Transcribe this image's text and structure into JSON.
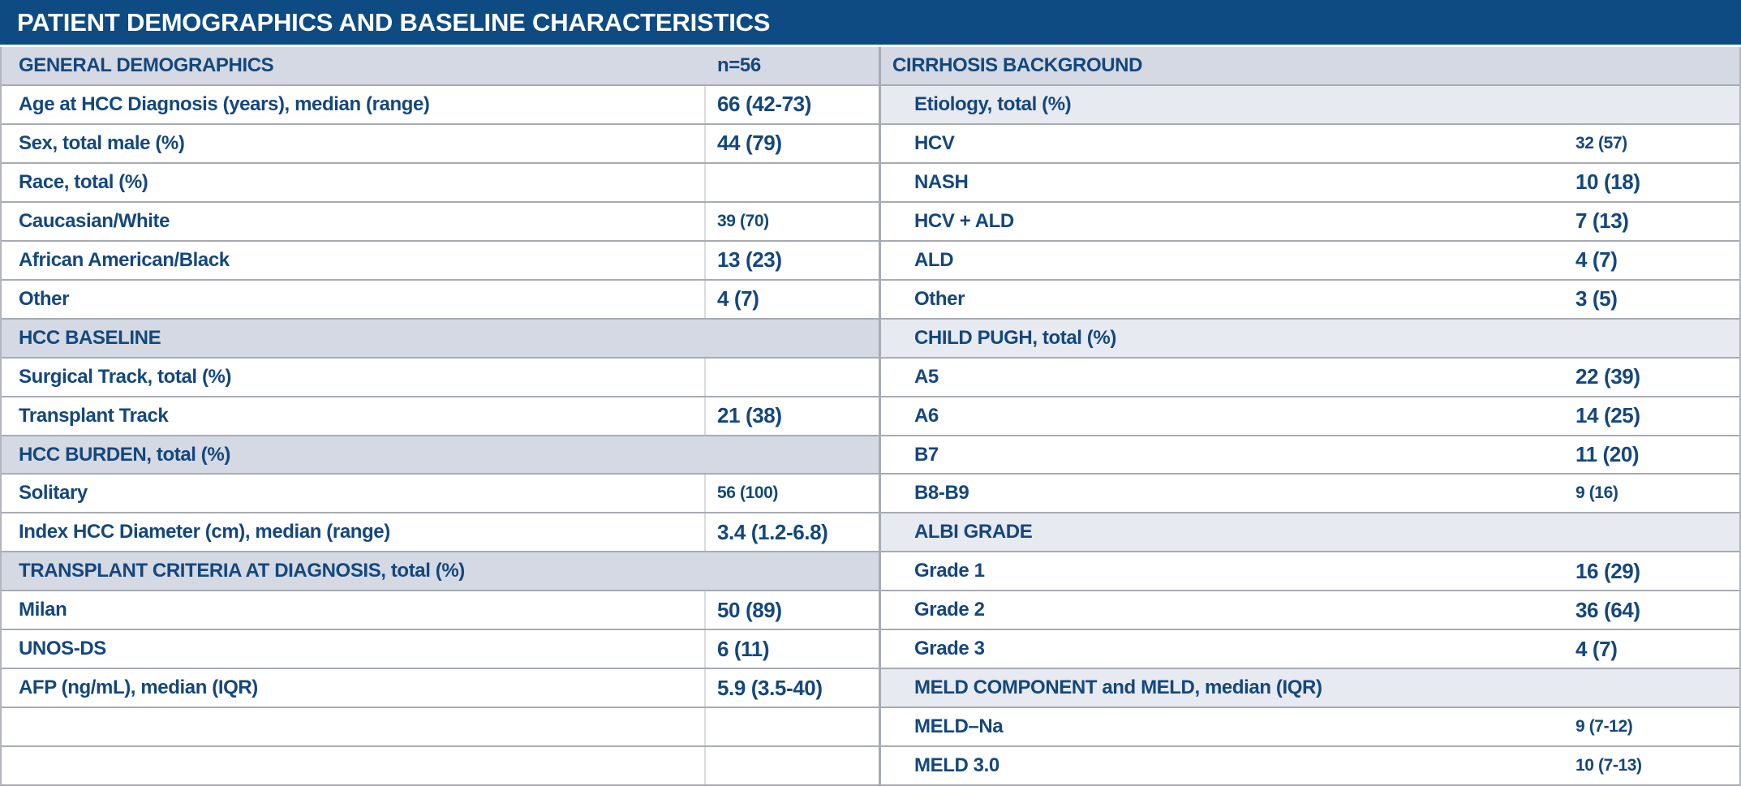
{
  "title": "PATIENT DEMOGRAPHICS AND BASELINE CHARACTERISTICS",
  "colors": {
    "title_bar_bg": "#0d4b82",
    "title_text": "#ffffff",
    "body_text_navy": "#14477d",
    "section_header_bg": "#d4d9e3",
    "subsection_header_bg": "#e7eaf1",
    "row_separator": "#a7abb3",
    "value_divider": "#d9dbdf",
    "row_bg": "#ffffff"
  },
  "table": {
    "left": {
      "rows": [
        {
          "label": "GENERAL DEMOGRAPHICS",
          "value": "n=56",
          "type": "header",
          "value_size": "med"
        },
        {
          "label": "Age at HCC Diagnosis (years), median (range)",
          "value": "66 (42-73)",
          "type": "item",
          "value_size": "big"
        },
        {
          "label": "Sex, total male (%)",
          "value": "44 (79)",
          "type": "item",
          "value_size": "big"
        },
        {
          "label": "Race, total (%)",
          "value": "",
          "type": "item",
          "value_size": "big"
        },
        {
          "label": "Caucasian/White",
          "value": "39 (70)",
          "type": "item",
          "value_size": "small"
        },
        {
          "label": "African American/Black",
          "value": "13 (23)",
          "type": "item",
          "value_size": "big"
        },
        {
          "label": "Other",
          "value": "4 (7)",
          "type": "item",
          "value_size": "big"
        },
        {
          "label": "HCC BASELINE",
          "value": "",
          "type": "section",
          "value_size": "big"
        },
        {
          "label": "Surgical Track, total (%)",
          "value": "",
          "type": "item",
          "value_size": "big"
        },
        {
          "label": "Transplant Track",
          "value": "21 (38)",
          "type": "item",
          "value_size": "big"
        },
        {
          "label": "HCC BURDEN, total (%)",
          "value": "",
          "type": "section",
          "value_size": "big"
        },
        {
          "label": "Solitary",
          "value": "56 (100)",
          "type": "item",
          "value_size": "small"
        },
        {
          "label": "Index HCC Diameter (cm), median (range)",
          "value": "3.4 (1.2-6.8)",
          "type": "item",
          "value_size": "big"
        },
        {
          "label": "TRANSPLANT CRITERIA AT DIAGNOSIS, total (%)",
          "value": "",
          "type": "section",
          "value_size": "big"
        },
        {
          "label": "Milan",
          "value": "50 (89)",
          "type": "item",
          "value_size": "big"
        },
        {
          "label": "UNOS-DS",
          "value": "6 (11)",
          "type": "item",
          "value_size": "big"
        },
        {
          "label": "AFP (ng/mL), median (IQR)",
          "value": "5.9 (3.5-40)",
          "type": "item",
          "value_size": "big"
        },
        {
          "label": "",
          "value": "",
          "type": "empty",
          "value_size": "big"
        },
        {
          "label": "",
          "value": "",
          "type": "empty",
          "value_size": "big"
        }
      ]
    },
    "right": {
      "rows": [
        {
          "label": "CIRRHOSIS BACKGROUND",
          "value": "",
          "type": "header",
          "value_size": "med"
        },
        {
          "label": "Etiology, total (%)",
          "value": "",
          "type": "subsection",
          "value_size": "big"
        },
        {
          "label": "HCV",
          "value": "32 (57)",
          "type": "item",
          "value_size": "small"
        },
        {
          "label": "NASH",
          "value": "10 (18)",
          "type": "item",
          "value_size": "big"
        },
        {
          "label": "HCV + ALD",
          "value": "7 (13)",
          "type": "item",
          "value_size": "big"
        },
        {
          "label": "ALD",
          "value": "4 (7)",
          "type": "item",
          "value_size": "big"
        },
        {
          "label": "Other",
          "value": "3 (5)",
          "type": "item",
          "value_size": "big"
        },
        {
          "label": "CHILD PUGH, total (%)",
          "value": "",
          "type": "subsection",
          "value_size": "big"
        },
        {
          "label": "A5",
          "value": "22 (39)",
          "type": "item",
          "value_size": "big"
        },
        {
          "label": "A6",
          "value": "14 (25)",
          "type": "item",
          "value_size": "big"
        },
        {
          "label": "B7",
          "value": "11 (20)",
          "type": "item",
          "value_size": "big"
        },
        {
          "label": "B8-B9",
          "value": "9 (16)",
          "type": "item",
          "value_size": "small"
        },
        {
          "label": "ALBI GRADE",
          "value": "",
          "type": "subsection",
          "value_size": "big"
        },
        {
          "label": "Grade 1",
          "value": "16 (29)",
          "type": "item",
          "value_size": "big"
        },
        {
          "label": "Grade 2",
          "value": "36 (64)",
          "type": "item",
          "value_size": "big"
        },
        {
          "label": "Grade 3",
          "value": "4 (7)",
          "type": "item",
          "value_size": "big"
        },
        {
          "label": "MELD COMPONENT and MELD, median (IQR)",
          "value": "",
          "type": "subsection",
          "value_size": "big"
        },
        {
          "label": "MELD–Na",
          "value": "9 (7-12)",
          "type": "item",
          "value_size": "small"
        },
        {
          "label": "MELD 3.0",
          "value": "10 (7-13)",
          "type": "item",
          "value_size": "small"
        }
      ]
    }
  }
}
